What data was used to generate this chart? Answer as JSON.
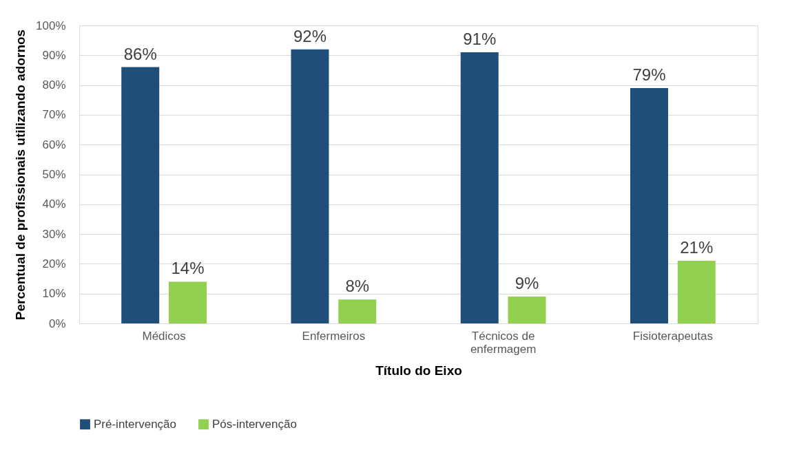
{
  "chart_data": {
    "type": "bar",
    "categories": [
      "Médicos",
      "Enfermeiros",
      "Técnicos de enfermagem",
      "Fisioterapeutas"
    ],
    "series": [
      {
        "name": "Pré-intervenção",
        "color": "#1f4e79",
        "values": [
          86,
          92,
          91,
          79
        ],
        "value_labels": [
          "86%",
          "92%",
          "91%",
          "79%"
        ]
      },
      {
        "name": "Pós-intervenção",
        "color": "#92d050",
        "values": [
          14,
          8,
          9,
          21
        ],
        "value_labels": [
          "14%",
          "8%",
          "9%",
          "21%"
        ]
      }
    ],
    "xlabel": "Título do Eixo",
    "ylabel": "Percentual de profissionais utilizando adornos",
    "ylim": [
      0,
      100
    ],
    "yticks": [
      {
        "value": 0,
        "label": "0%"
      },
      {
        "value": 10,
        "label": "10%"
      },
      {
        "value": 20,
        "label": "20%"
      },
      {
        "value": 30,
        "label": "30%"
      },
      {
        "value": 40,
        "label": "40%"
      },
      {
        "value": 50,
        "label": "50%"
      },
      {
        "value": 60,
        "label": "60%"
      },
      {
        "value": 70,
        "label": "70%"
      },
      {
        "value": 80,
        "label": "80%"
      },
      {
        "value": 90,
        "label": "90%"
      },
      {
        "value": 100,
        "label": "100%"
      }
    ],
    "grid": "y",
    "legend": "bottom"
  }
}
